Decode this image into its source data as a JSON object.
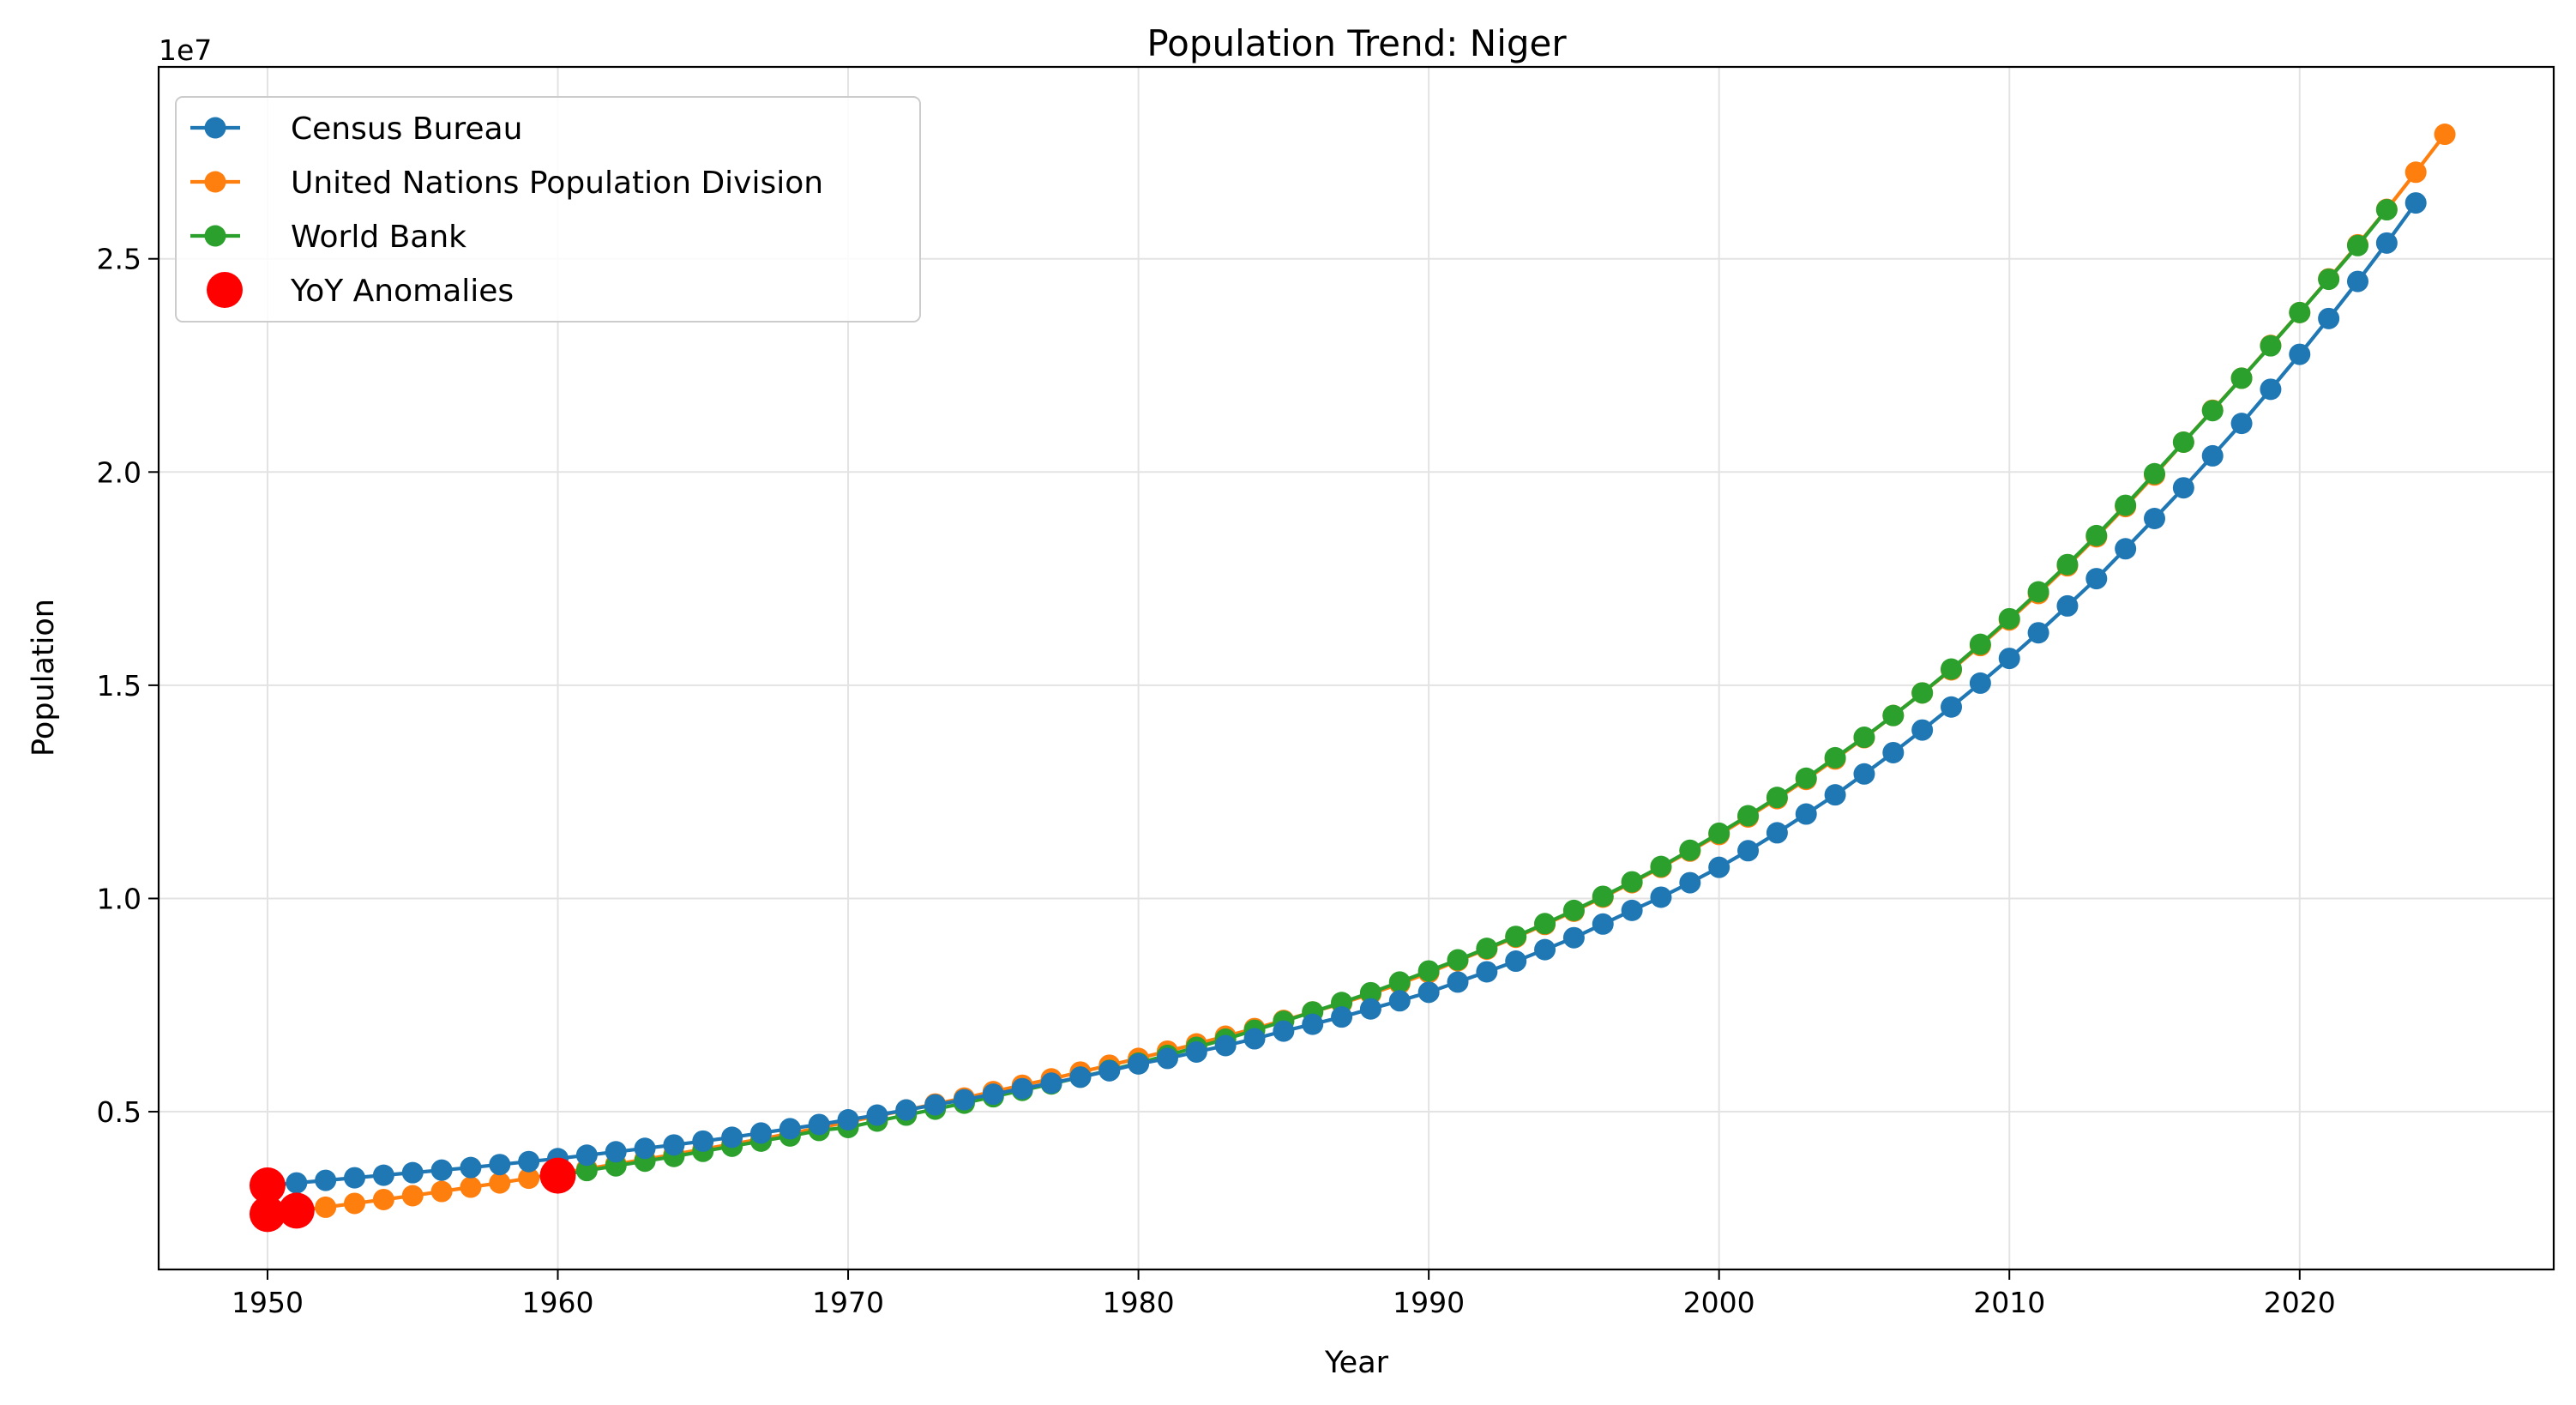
{
  "chart_data": {
    "type": "line",
    "title": "Population Trend: Niger",
    "xlabel": "Year",
    "ylabel": "Population",
    "y_offset_label": "1e7",
    "xlim": [
      1946.25,
      2028.75
    ],
    "ylim": [
      1.3,
      29.5
    ],
    "y_unit_multiplier": 10000000.0,
    "grid": true,
    "legend_position": "top-left",
    "x_ticks": [
      1950,
      1960,
      1970,
      1980,
      1990,
      2000,
      2010,
      2020
    ],
    "x_tick_labels": [
      "1950",
      "1960",
      "1970",
      "1980",
      "1990",
      "2000",
      "2010",
      "2020"
    ],
    "y_ticks": [
      5.0,
      10.0,
      15.0,
      20.0,
      25.0
    ],
    "y_tick_labels": [
      "0.5",
      "1.0",
      "1.5",
      "2.0",
      "2.5"
    ],
    "series": [
      {
        "name": "United Nations Population Division",
        "color": "#ff7f0e",
        "x": [
          1950,
          1951,
          1952,
          1953,
          1954,
          1955,
          1956,
          1957,
          1958,
          1959,
          1960,
          1961,
          1962,
          1963,
          1964,
          1965,
          1966,
          1967,
          1968,
          1969,
          1970,
          1971,
          1972,
          1973,
          1974,
          1975,
          1976,
          1977,
          1978,
          1979,
          1980,
          1981,
          1982,
          1983,
          1984,
          1985,
          1986,
          1987,
          1988,
          1989,
          1990,
          1991,
          1992,
          1993,
          1994,
          1995,
          1996,
          1997,
          1998,
          1999,
          2000,
          2001,
          2002,
          2003,
          2004,
          2005,
          2006,
          2007,
          2008,
          2009,
          2010,
          2011,
          2012,
          2013,
          2014,
          2015,
          2016,
          2017,
          2018,
          2019,
          2020,
          2021,
          2022,
          2023,
          2024,
          2025
        ],
        "values": [
          2.6,
          2.68,
          2.76,
          2.85,
          2.94,
          3.03,
          3.13,
          3.23,
          3.33,
          3.44,
          3.55,
          3.66,
          3.77,
          3.88,
          4.0,
          4.12,
          4.24,
          4.36,
          4.49,
          4.62,
          4.76,
          4.9,
          5.04,
          5.18,
          5.32,
          5.47,
          5.62,
          5.77,
          5.93,
          6.09,
          6.25,
          6.42,
          6.59,
          6.77,
          6.95,
          7.14,
          7.34,
          7.54,
          7.76,
          8.0,
          8.26,
          8.54,
          8.81,
          9.09,
          9.39,
          9.7,
          10.03,
          10.37,
          10.73,
          11.11,
          11.5,
          11.91,
          12.34,
          12.79,
          13.27,
          13.77,
          14.29,
          14.82,
          15.36,
          15.93,
          16.53,
          17.15,
          17.8,
          18.48,
          19.19,
          19.93,
          20.7,
          21.45,
          22.2,
          22.97,
          23.74,
          24.53,
          25.33,
          26.16,
          27.03,
          27.92
        ]
      },
      {
        "name": "World Bank",
        "color": "#2ca02c",
        "x": [
          1960,
          1961,
          1962,
          1963,
          1964,
          1965,
          1966,
          1967,
          1968,
          1969,
          1970,
          1971,
          1972,
          1973,
          1974,
          1975,
          1976,
          1977,
          1978,
          1979,
          1980,
          1981,
          1982,
          1983,
          1984,
          1985,
          1986,
          1987,
          1988,
          1989,
          1990,
          1991,
          1992,
          1993,
          1994,
          1995,
          1996,
          1997,
          1998,
          1999,
          2000,
          2001,
          2002,
          2003,
          2004,
          2005,
          2006,
          2007,
          2008,
          2009,
          2010,
          2011,
          2012,
          2013,
          2014,
          2015,
          2016,
          2017,
          2018,
          2019,
          2020,
          2021,
          2022,
          2023
        ],
        "values": [
          3.5,
          3.62,
          3.73,
          3.84,
          3.95,
          4.07,
          4.19,
          4.31,
          4.43,
          4.56,
          4.63,
          4.78,
          4.92,
          5.06,
          5.2,
          5.35,
          5.5,
          5.65,
          5.81,
          5.97,
          6.14,
          6.32,
          6.51,
          6.7,
          6.91,
          7.12,
          7.34,
          7.56,
          7.79,
          8.04,
          8.3,
          8.56,
          8.83,
          9.11,
          9.41,
          9.72,
          10.05,
          10.39,
          10.75,
          11.13,
          11.53,
          11.94,
          12.37,
          12.82,
          13.3,
          13.78,
          14.29,
          14.82,
          15.38,
          15.96,
          16.56,
          17.19,
          17.83,
          18.51,
          19.22,
          19.96,
          20.7,
          21.44,
          22.2,
          22.96,
          23.74,
          24.52,
          25.31,
          26.15
        ]
      },
      {
        "name": "Census Bureau",
        "color": "#1f77b4",
        "x": [
          1950,
          1951,
          1952,
          1953,
          1954,
          1955,
          1956,
          1957,
          1958,
          1959,
          1960,
          1961,
          1962,
          1963,
          1964,
          1965,
          1966,
          1967,
          1968,
          1969,
          1970,
          1971,
          1972,
          1973,
          1974,
          1975,
          1976,
          1977,
          1978,
          1979,
          1980,
          1981,
          1982,
          1983,
          1984,
          1985,
          1986,
          1987,
          1988,
          1989,
          1990,
          1991,
          1992,
          1993,
          1994,
          1995,
          1996,
          1997,
          1998,
          1999,
          2000,
          2001,
          2002,
          2003,
          2004,
          2005,
          2006,
          2007,
          2008,
          2009,
          2010,
          2011,
          2012,
          2013,
          2014,
          2015,
          2016,
          2017,
          2018,
          2019,
          2020,
          2021,
          2022,
          2023,
          2024
        ],
        "values": [
          3.27,
          3.33,
          3.39,
          3.45,
          3.51,
          3.57,
          3.63,
          3.69,
          3.76,
          3.83,
          3.9,
          3.98,
          4.06,
          4.14,
          4.22,
          4.31,
          4.4,
          4.5,
          4.6,
          4.7,
          4.81,
          4.92,
          5.04,
          5.16,
          5.28,
          5.41,
          5.54,
          5.67,
          5.81,
          5.96,
          6.12,
          6.25,
          6.4,
          6.55,
          6.71,
          6.89,
          7.05,
          7.22,
          7.41,
          7.6,
          7.8,
          8.04,
          8.28,
          8.53,
          8.8,
          9.08,
          9.4,
          9.72,
          10.03,
          10.37,
          10.73,
          11.12,
          11.54,
          11.98,
          12.43,
          12.92,
          13.42,
          13.95,
          14.49,
          15.05,
          15.63,
          16.23,
          16.86,
          17.5,
          18.2,
          18.91,
          19.63,
          20.38,
          21.14,
          21.94,
          22.76,
          23.6,
          24.47,
          25.37,
          26.31
        ]
      }
    ],
    "legend_entries": [
      {
        "name": "Census Bureau",
        "color": "#1f77b4",
        "kind": "line"
      },
      {
        "name": "United Nations Population Division",
        "color": "#ff7f0e",
        "kind": "line"
      },
      {
        "name": "World Bank",
        "color": "#2ca02c",
        "kind": "line"
      },
      {
        "name": "YoY Anomalies",
        "color": "#ff0000",
        "kind": "scatter"
      }
    ],
    "anomalies": {
      "name": "YoY Anomalies",
      "color": "#ff0000",
      "points": [
        {
          "x": 1950,
          "y": 3.27
        },
        {
          "x": 1950,
          "y": 2.6
        },
        {
          "x": 1951,
          "y": 2.68
        },
        {
          "x": 1960,
          "y": 3.5
        }
      ]
    }
  }
}
